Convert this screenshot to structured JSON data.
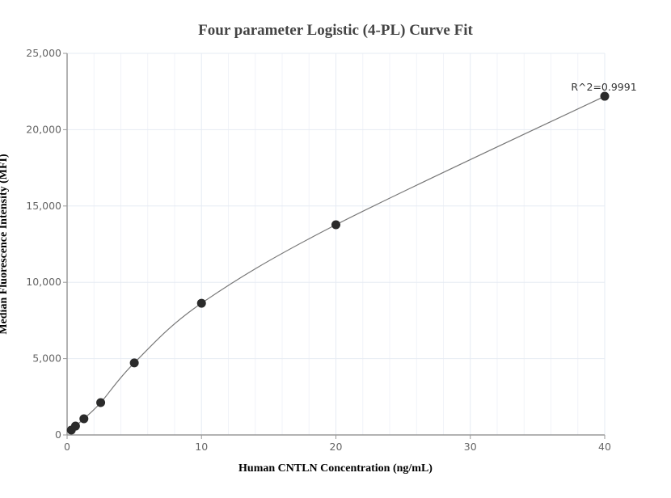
{
  "chart_data": {
    "type": "scatter",
    "title": "Four parameter Logistic (4-PL) Curve Fit",
    "xlabel": "Human CNTLN Concentration (ng/mL)",
    "ylabel": "Median Fluorescence Intensity (MFI)",
    "xlim": [
      0,
      40
    ],
    "ylim": [
      0,
      25000
    ],
    "xticks": [
      0,
      10,
      20,
      30,
      40
    ],
    "xtick_labels": [
      "0",
      "10",
      "20",
      "30",
      "40"
    ],
    "yticks": [
      0,
      5000,
      10000,
      15000,
      20000,
      25000
    ],
    "ytick_labels": [
      "0",
      "5,000",
      "10,000",
      "15,000",
      "20,000",
      "25,000"
    ],
    "grid": true,
    "points": [
      {
        "x": 0.3125,
        "y": 320
      },
      {
        "x": 0.625,
        "y": 580
      },
      {
        "x": 1.25,
        "y": 1060
      },
      {
        "x": 2.5,
        "y": 2120
      },
      {
        "x": 5,
        "y": 4720
      },
      {
        "x": 10,
        "y": 8630
      },
      {
        "x": 20,
        "y": 13770
      },
      {
        "x": 40,
        "y": 22190
      }
    ],
    "annotation": "R^2=0.9991",
    "point_color": "#2b2b2b",
    "curve_color": "#777777"
  }
}
